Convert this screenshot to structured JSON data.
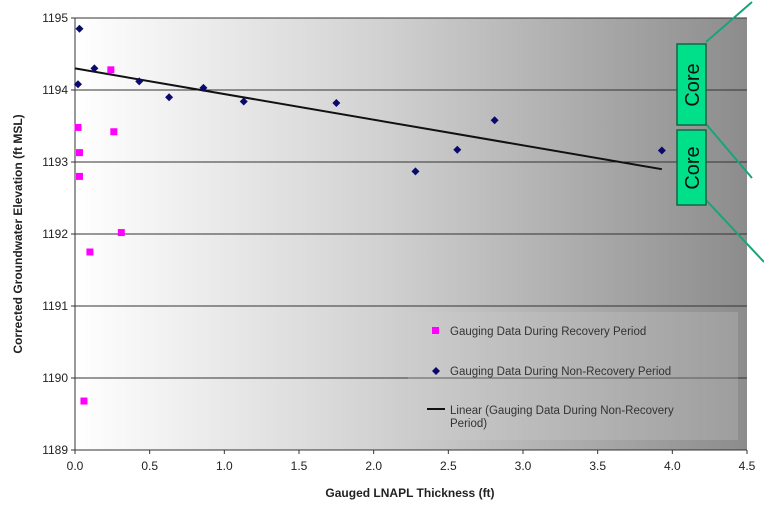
{
  "chart_data": {
    "type": "scatter",
    "title": "",
    "xlabel": "Gauged LNAPL Thickness (ft)",
    "ylabel": "Corrected Groundwater Elevation (ft MSL)",
    "xlim": [
      0,
      4.5
    ],
    "ylim": [
      1189,
      1195
    ],
    "x_ticks": [
      "0.0",
      "0.5",
      "1.0",
      "1.5",
      "2.0",
      "2.5",
      "3.0",
      "3.5",
      "4.0",
      "4.5"
    ],
    "y_ticks": [
      "1189",
      "1190",
      "1191",
      "1192",
      "1193",
      "1194",
      "1195"
    ],
    "grid": "horizontal",
    "legend_position": "lower-right",
    "series": [
      {
        "name": "Gauging Data During Recovery Period",
        "color": "#ff00ff",
        "marker": "square",
        "points": [
          {
            "x": 0.02,
            "y": 1193.48
          },
          {
            "x": 0.03,
            "y": 1193.13
          },
          {
            "x": 0.03,
            "y": 1192.8
          },
          {
            "x": 0.1,
            "y": 1191.75
          },
          {
            "x": 0.06,
            "y": 1189.68
          },
          {
            "x": 0.24,
            "y": 1194.28
          },
          {
            "x": 0.26,
            "y": 1193.42
          },
          {
            "x": 0.31,
            "y": 1192.02
          }
        ]
      },
      {
        "name": "Gauging Data During Non-Recovery Period",
        "color": "#0a0a6e",
        "marker": "diamond",
        "points": [
          {
            "x": 0.03,
            "y": 1194.85
          },
          {
            "x": 0.02,
            "y": 1194.08
          },
          {
            "x": 0.13,
            "y": 1194.3
          },
          {
            "x": 0.43,
            "y": 1194.12
          },
          {
            "x": 0.63,
            "y": 1193.9
          },
          {
            "x": 0.86,
            "y": 1194.03
          },
          {
            "x": 1.13,
            "y": 1193.84
          },
          {
            "x": 1.75,
            "y": 1193.82
          },
          {
            "x": 2.28,
            "y": 1192.87
          },
          {
            "x": 2.56,
            "y": 1193.17
          },
          {
            "x": 2.81,
            "y": 1193.58
          },
          {
            "x": 3.93,
            "y": 1193.16
          }
        ]
      },
      {
        "name": "Linear (Gauging Data During Non-Recovery Period)",
        "color": "#111111",
        "type": "trendline",
        "x": [
          0.0,
          3.93
        ],
        "y": [
          1194.3,
          1192.9
        ]
      }
    ]
  },
  "annotations": {
    "core_upper": "Core",
    "core_lower": "Core",
    "core_fill": "#00e08a",
    "core_border": "#116644",
    "connector_color": "#1aa37a"
  }
}
